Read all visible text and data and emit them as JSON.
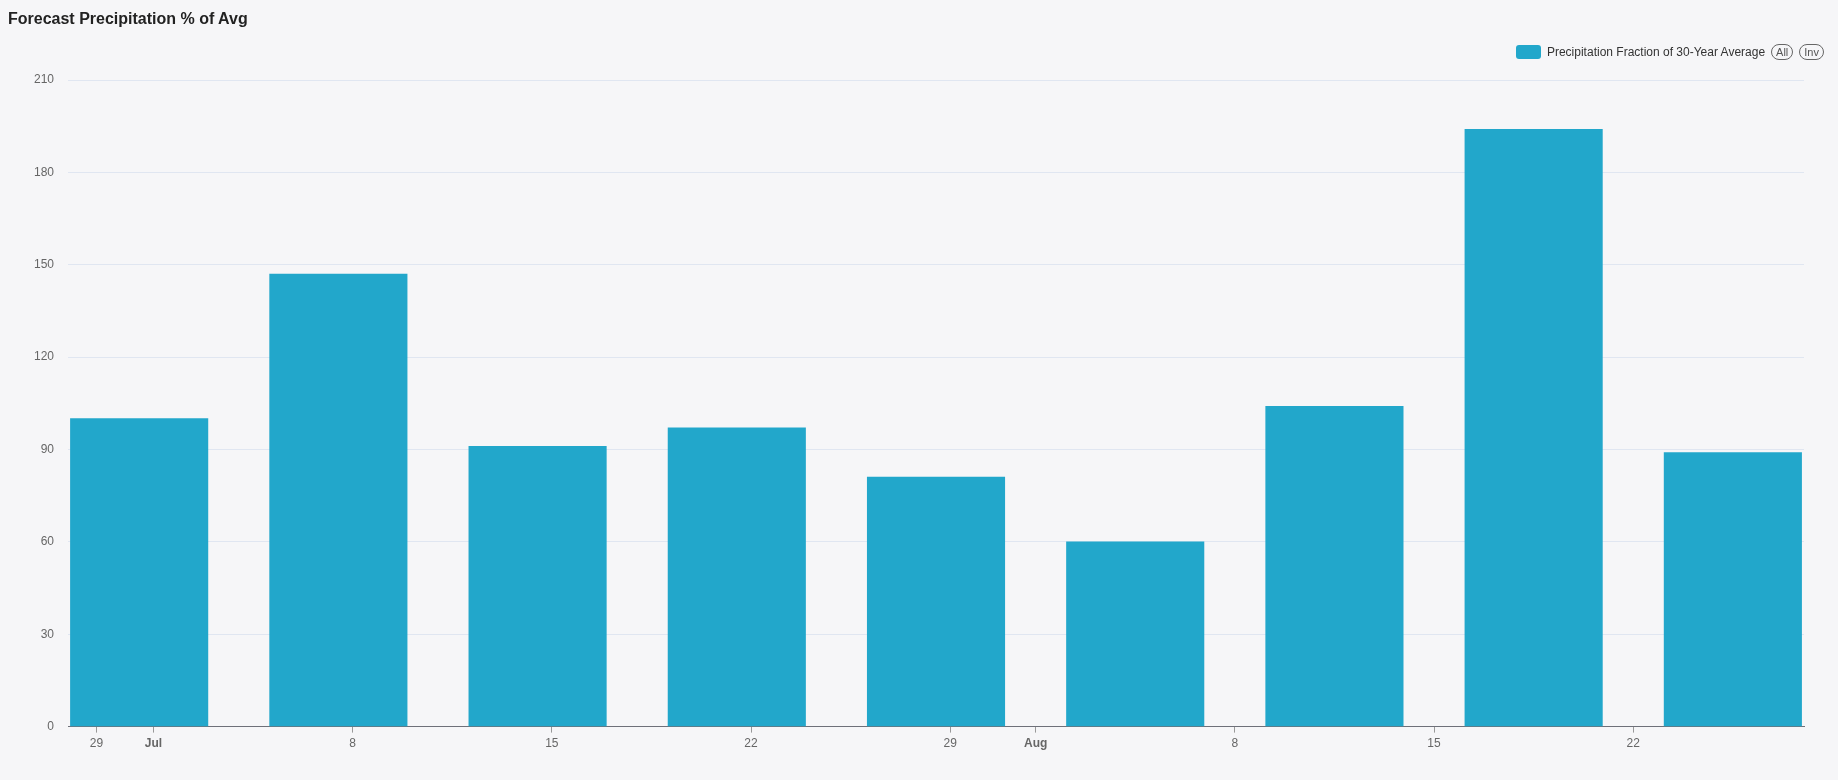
{
  "chart_data": {
    "type": "bar",
    "title": "Forecast Precipitation % of Avg",
    "x": [
      "--06-30T12:00",
      "--07-07T12:00",
      "--07-14T12:00",
      "--07-21T12:00",
      "--07-28T12:00",
      "--08-04T12:00",
      "--08-11T12:00",
      "--08-18T12:00",
      "--08-25T12:00"
    ],
    "series": [
      {
        "name": "Precipitation Fraction of 30-Year Average",
        "color": "#22a7cb",
        "values": [
          100,
          147,
          91,
          97,
          81,
          60,
          104,
          194,
          89
        ]
      }
    ],
    "xlim": [
      "--06-28",
      "--08-28"
    ],
    "xticks": [
      {
        "value": "--06-29",
        "label": "29"
      },
      {
        "value": "--07-01",
        "label": "Jul"
      },
      {
        "value": "--07-08",
        "label": "8"
      },
      {
        "value": "--07-15",
        "label": "15"
      },
      {
        "value": "--07-22",
        "label": "22"
      },
      {
        "value": "--07-29",
        "label": "29"
      },
      {
        "value": "--08-01",
        "label": "Aug"
      },
      {
        "value": "--08-08",
        "label": "8"
      },
      {
        "value": "--08-15",
        "label": "15"
      },
      {
        "value": "--08-22",
        "label": "22"
      }
    ],
    "ylim": [
      0,
      210
    ],
    "yticks": [
      0,
      30,
      60,
      90,
      120,
      150,
      180,
      210
    ],
    "grid": "y",
    "legend": "top right",
    "annotations": [
      "All",
      "Inv"
    ]
  }
}
